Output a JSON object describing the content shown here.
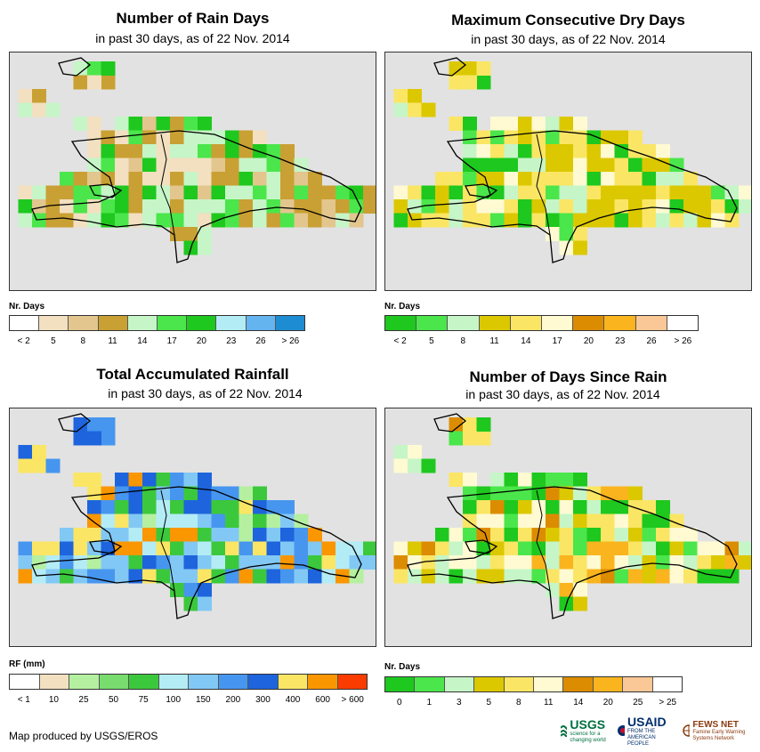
{
  "panels": [
    {
      "id": "rain-days",
      "title": "Number of Rain Days",
      "subtitle": "in past 30 days, as of 22 Nov. 2014",
      "legend_title": "Nr. Days",
      "legend_colors": [
        "#ffffff",
        "#f2e0c0",
        "#e2c68e",
        "#c9a033",
        "#c6f5c8",
        "#4be64b",
        "#1ec81e",
        "#b4ecf5",
        "#64b4f0",
        "#1e8cd2"
      ],
      "legend_labels": [
        "< 2",
        "5",
        "8",
        "11",
        "14",
        "17",
        "20",
        "23",
        "26",
        "> 26"
      ]
    },
    {
      "id": "dry-days",
      "title": "Maximum Consecutive Dry Days",
      "subtitle": "in past 30 days, as of 22 Nov. 2014",
      "legend_title": "Nr. Days",
      "legend_colors": [
        "#1ec81e",
        "#4be64b",
        "#c6f5c8",
        "#dcc800",
        "#fae664",
        "#fffad2",
        "#dc8c00",
        "#fab41e",
        "#fac896",
        "#ffffff"
      ],
      "legend_labels": [
        "< 2",
        "5",
        "8",
        "11",
        "14",
        "17",
        "20",
        "23",
        "26",
        "> 26"
      ]
    },
    {
      "id": "rainfall",
      "title": "Total Accumulated Rainfall",
      "subtitle": "in past 30 days, as of 22 Nov. 2014",
      "legend_title": "RF (mm)",
      "legend_colors": [
        "#ffffff",
        "#f2e0c0",
        "#b4f0a0",
        "#78dc6e",
        "#3cc83c",
        "#b4ecf5",
        "#82c8f5",
        "#4696f0",
        "#1e64dc",
        "#fae664",
        "#fa9600",
        "#fa3c00"
      ],
      "legend_labels": [
        "< 1",
        "10",
        "25",
        "50",
        "75",
        "100",
        "150",
        "200",
        "300",
        "400",
        "600",
        "> 600"
      ]
    },
    {
      "id": "days-since",
      "title": "Number of Days Since Rain",
      "subtitle": "in past 30 days, as of 22 Nov. 2014",
      "legend_title": "Nr. Days",
      "legend_colors": [
        "#1ec81e",
        "#4be64b",
        "#c6f5c8",
        "#dcc800",
        "#fae664",
        "#fffad2",
        "#dc8c00",
        "#fab41e",
        "#fac896",
        "#ffffff"
      ],
      "legend_labels": [
        "0",
        "1",
        "3",
        "5",
        "8",
        "11",
        "14",
        "20",
        "25",
        "> 25"
      ]
    }
  ],
  "credit": "Map produced by USGS/EROS",
  "logos": {
    "usgs": "USGS",
    "usgs_tag": "science for a changing world",
    "usaid": "USAID",
    "usaid_tag": "FROM THE AMERICAN PEOPLE",
    "fews": "FEWS NET",
    "fews_tag": "Famine Early Warning Systems Network"
  }
}
